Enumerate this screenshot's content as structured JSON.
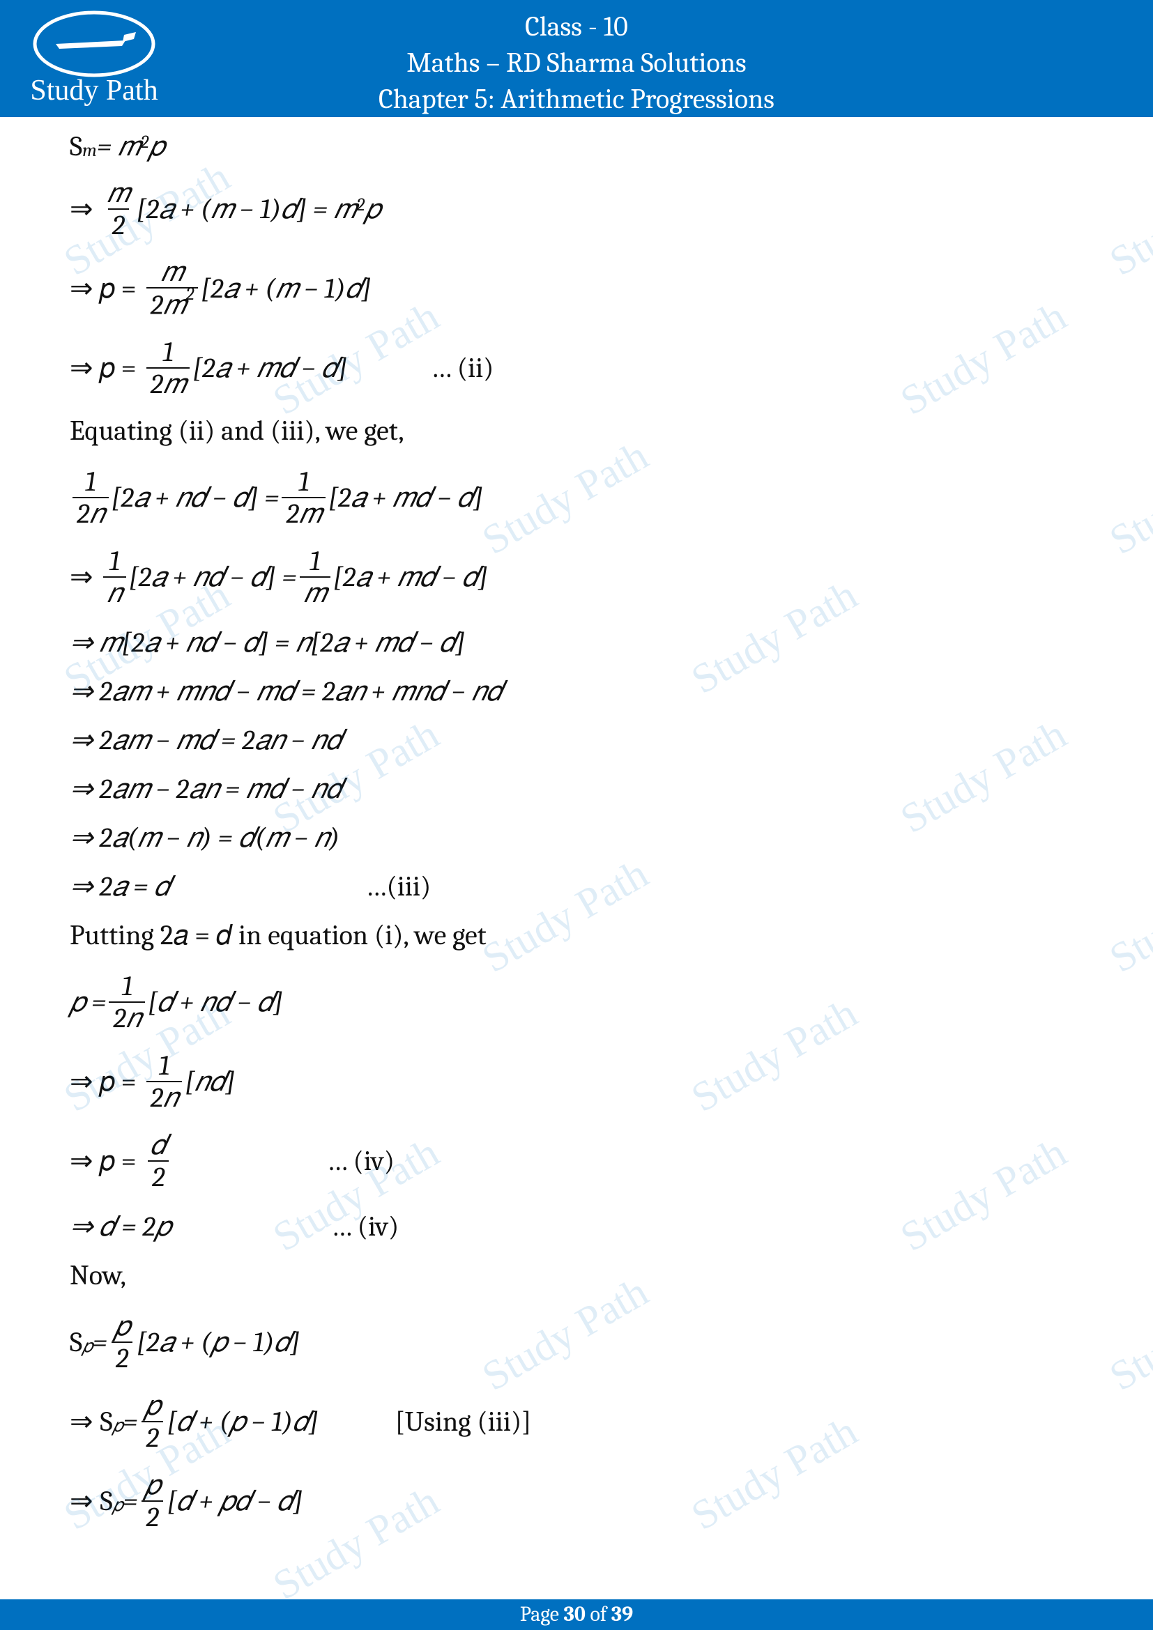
{
  "header": {
    "line1": "Class - 10",
    "line2": "Maths – RD Sharma Solutions",
    "line3": "Chapter 5: Arithmetic Progressions",
    "logo_text": "Study Path"
  },
  "eq": {
    "l1a": "S",
    "l1b": "m",
    "l1c": " = 𝑚",
    "l1d": "2",
    "l1e": "𝑝",
    "l2a": "⇒ ",
    "l2f1n": "𝑚",
    "l2f1d": "2",
    "l2b": "[2𝑎 + (𝑚 − 1)𝑑] = 𝑚",
    "l2c": "2",
    "l2d": "𝑝",
    "l3a": "⇒ 𝑝 = ",
    "l3f1n": "𝑚",
    "l3f1d": "2𝑚",
    "l3f1d2": "2",
    "l3b": "[2𝑎 + (𝑚 − 1)𝑑]",
    "l4a": "⇒ 𝑝 = ",
    "l4f1n": "1",
    "l4f1d": "2𝑚",
    "l4b": "[2𝑎 + 𝑚𝑑 − 𝑑]",
    "l4note": "… (ii)",
    "t1": "Equating (ii) and (iii), we get,",
    "l5f1n": "1",
    "l5f1d": "2𝑛",
    "l5a": "[2𝑎 + 𝑛𝑑 − 𝑑] = ",
    "l5f2n": "1",
    "l5f2d": "2𝑚",
    "l5b": "[2𝑎 + 𝑚𝑑 − 𝑑]",
    "l6a": "⇒ ",
    "l6f1n": "1",
    "l6f1d": "𝑛",
    "l6b": "[2𝑎 + 𝑛𝑑 − 𝑑] = ",
    "l6f2n": "1",
    "l6f2d": "𝑚",
    "l6c": "[2𝑎 + 𝑚𝑑 − 𝑑]",
    "l7": "⇒ 𝑚[2𝑎 + 𝑛𝑑 − 𝑑] = 𝑛[2𝑎 + 𝑚𝑑 − 𝑑]",
    "l8": "⇒ 2𝑎𝑚 + 𝑚𝑛𝑑 − 𝑚𝑑 = 2𝑎𝑛 + 𝑚𝑛𝑑 − 𝑛𝑑",
    "l9": "⇒ 2𝑎𝑚 − 𝑚𝑑 = 2𝑎𝑛 − 𝑛𝑑",
    "l10": "⇒ 2𝑎𝑚 − 2𝑎𝑛 = 𝑚𝑑 − 𝑛𝑑",
    "l11": "⇒ 2𝑎(𝑚 − 𝑛) = 𝑑(𝑚 − 𝑛)",
    "l12": "⇒ 2𝑎 = 𝑑",
    "l12note": "…(iii)",
    "t2": "Putting 2𝑎 = 𝑑 in equation (i), we get",
    "l13a": "𝑝 = ",
    "l13f1n": "1",
    "l13f1d": "2𝑛",
    "l13b": "[𝑑 + 𝑛𝑑 − 𝑑]",
    "l14a": "⇒ 𝑝 = ",
    "l14f1n": "1",
    "l14f1d": "2𝑛",
    "l14b": "[𝑛𝑑]",
    "l15a": "⇒ 𝑝 = ",
    "l15f1n": "𝑑",
    "l15f1d": "2",
    "l15note": "… (iv)",
    "l16": "⇒ 𝑑 = 2𝑝",
    "l16note": "… (iv)",
    "t3": "Now,",
    "l17a": "S",
    "l17b": "𝑝",
    "l17c": " = ",
    "l17f1n": "𝑝",
    "l17f1d": "2",
    "l17d": "[2𝑎 + (𝑝 − 1)𝑑]",
    "l18a": "⇒ S",
    "l18b": "𝑝",
    "l18c": " = ",
    "l18f1n": "𝑝",
    "l18f1d": "2",
    "l18d": "[𝑑 + (𝑝 − 1)𝑑]",
    "l18note": "[Using (iii)]",
    "l19a": "⇒ S",
    "l19b": "𝑝",
    "l19c": " = ",
    "l19f1n": "𝑝",
    "l19f1d": "2",
    "l19d": "[𝑑 + 𝑝𝑑 − 𝑑]"
  },
  "footer": {
    "prefix": "Page ",
    "page": "30",
    "mid": " of ",
    "total": "39"
  },
  "watermark": "Study Path",
  "colors": {
    "brand": "#0070c0",
    "text": "#111111",
    "bg": "#ffffff"
  }
}
